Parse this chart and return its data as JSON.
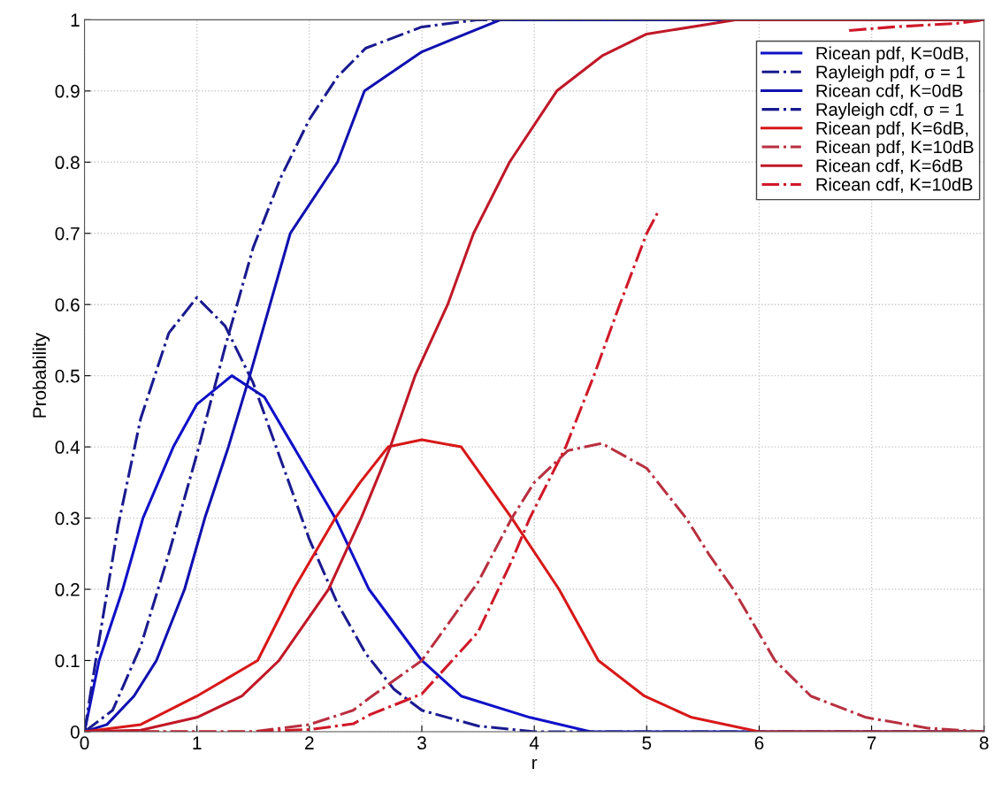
{
  "chart_data": {
    "type": "line",
    "xlabel": "r",
    "ylabel": "Probability",
    "xlim": [
      0,
      8
    ],
    "ylim": [
      0,
      1
    ],
    "xticks": [
      0,
      1,
      2,
      3,
      4,
      5,
      6,
      7,
      8
    ],
    "yticks": [
      0,
      0.1,
      0.2,
      0.3,
      0.4,
      0.5,
      0.6,
      0.7,
      0.8,
      0.9,
      1
    ],
    "grid": true,
    "legend": "top right",
    "series": [
      {
        "name": "Ricean pdf, K=0dB,",
        "color": "#1010c8",
        "line_style": "solid",
        "x": [
          0,
          0.13,
          0.34,
          0.52,
          0.79,
          1,
          1.31,
          1.6,
          1.86,
          2.23,
          2.53,
          3,
          3.35,
          3.96,
          4.5,
          8
        ],
        "values": [
          0,
          0.1,
          0.2,
          0.3,
          0.4,
          0.46,
          0.5,
          0.47,
          0.4,
          0.3,
          0.2,
          0.1,
          0.05,
          0.02,
          0,
          0
        ]
      },
      {
        "name": "Rayleigh pdf, σ = 1",
        "color": "#1a1a90",
        "line_style": "dashdot",
        "x": [
          0,
          0.1,
          0.3,
          0.5,
          0.75,
          1,
          1.25,
          1.5,
          1.75,
          2,
          2.25,
          2.5,
          2.75,
          3,
          3.5,
          4,
          8
        ],
        "values": [
          0,
          0.1,
          0.29,
          0.44,
          0.56,
          0.61,
          0.57,
          0.49,
          0.38,
          0.27,
          0.18,
          0.11,
          0.06,
          0.03,
          0.008,
          0,
          0
        ]
      },
      {
        "name": "Ricean cdf, K=0dB",
        "color": "#1010b0",
        "line_style": "solid",
        "x": [
          0,
          0.2,
          0.44,
          0.64,
          0.89,
          1.07,
          1.28,
          1.47,
          1.65,
          1.83,
          2.25,
          2.49,
          3,
          3.7,
          8
        ],
        "values": [
          0,
          0.01,
          0.05,
          0.1,
          0.2,
          0.3,
          0.4,
          0.5,
          0.6,
          0.7,
          0.8,
          0.9,
          0.955,
          1,
          1
        ]
      },
      {
        "name": "Rayleigh cdf, σ = 1",
        "color": "#1a1a90",
        "line_style": "dashdot",
        "x": [
          0,
          0.25,
          0.5,
          0.75,
          1,
          1.25,
          1.5,
          1.75,
          2,
          2.25,
          2.5,
          3,
          3.5,
          4,
          8
        ],
        "values": [
          0,
          0.03,
          0.12,
          0.25,
          0.39,
          0.54,
          0.68,
          0.78,
          0.86,
          0.92,
          0.96,
          0.99,
          1,
          1,
          1
        ]
      },
      {
        "name": "Ricean pdf, K=6dB,",
        "color": "#d81818",
        "line_style": "solid",
        "x": [
          0,
          0.5,
          1,
          1.54,
          1.86,
          2.23,
          2.45,
          2.7,
          3,
          3.35,
          3.8,
          4.22,
          4.57,
          4.98,
          5.4,
          6,
          8
        ],
        "values": [
          0,
          0.01,
          0.05,
          0.1,
          0.2,
          0.3,
          0.35,
          0.4,
          0.41,
          0.4,
          0.3,
          0.2,
          0.1,
          0.05,
          0.02,
          0,
          0
        ]
      },
      {
        "name": "Ricean pdf, K=10dB",
        "color": "#b83040",
        "line_style": "dashdot",
        "x": [
          0,
          1.5,
          2,
          2.39,
          2.54,
          3,
          3.5,
          3.8,
          4,
          4.3,
          4.6,
          5,
          5.35,
          5.55,
          5.77,
          6.14,
          6.46,
          6.95,
          7.5,
          8
        ],
        "values": [
          0,
          0,
          0.01,
          0.03,
          0.048,
          0.1,
          0.21,
          0.3,
          0.35,
          0.395,
          0.405,
          0.37,
          0.3,
          0.25,
          0.2,
          0.1,
          0.05,
          0.02,
          0.005,
          0
        ]
      },
      {
        "name": "Ricean cdf, K=6dB",
        "color": "#c01828",
        "line_style": "solid",
        "x": [
          0,
          0.5,
          1,
          1.4,
          1.73,
          2.17,
          2.46,
          2.72,
          2.94,
          3.23,
          3.46,
          3.78,
          4.2,
          4.61,
          5,
          5.8,
          8
        ],
        "values": [
          0,
          0.002,
          0.02,
          0.05,
          0.1,
          0.2,
          0.3,
          0.4,
          0.5,
          0.6,
          0.7,
          0.8,
          0.9,
          0.95,
          0.98,
          1,
          1
        ]
      },
      {
        "name": "Ricean cdf, K=10dB",
        "color": "#d01828",
        "line_style": "dashdot",
        "x": [
          0,
          1.5,
          2,
          2.39,
          2.54,
          3,
          3.5,
          3.8,
          3.96,
          4.28,
          4.53,
          4.76,
          5,
          5.1,
          6,
          6.8,
          7.2,
          7.76,
          8
        ],
        "values": [
          0,
          0,
          0.003,
          0.011,
          0.024,
          0.053,
          0.14,
          0.24,
          0.3,
          0.4,
          0.5,
          0.6,
          0.7,
          0.73,
          null,
          0.985,
          0.99,
          0.995,
          1
        ]
      }
    ]
  }
}
